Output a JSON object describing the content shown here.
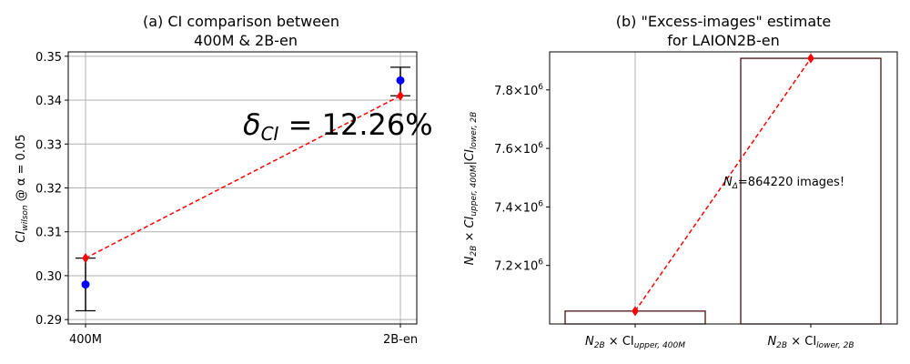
{
  "chart_data": [
    {
      "type": "scatter",
      "title_line1": "(a) CI comparison between",
      "title_line2": "400M & 2B-en",
      "categories": [
        "400M",
        "2B-en"
      ],
      "ylim": [
        0.289,
        0.351
      ],
      "yticks": [
        0.29,
        0.3,
        0.31,
        0.32,
        0.33,
        0.34,
        0.35
      ],
      "ytick_labels": [
        "0.29",
        "0.30",
        "0.31",
        "0.32",
        "0.33",
        "0.34",
        "0.35"
      ],
      "ylabel": {
        "base": "CI",
        "sub": "wilson",
        "rest": " @ α = 0.05"
      },
      "grid": true,
      "centers": {
        "color": "#0000ff",
        "values": [
          0.298,
          0.3445
        ]
      },
      "error_bars": {
        "color": "#000000",
        "lower": [
          0.292,
          0.341
        ],
        "upper": [
          0.304,
          0.3475
        ]
      },
      "bounds_line": {
        "color": "#ff0000",
        "style": "dashed",
        "values": [
          0.304,
          0.341
        ]
      },
      "annotation": {
        "base": "δ",
        "sub": "CI",
        "rest": " = 12.26%"
      }
    },
    {
      "type": "bar",
      "title_line1": "(b) \"Excess-images\" estimate",
      "title_line2": "for LAION2B-en",
      "categories": [
        {
          "base": "N",
          "sub1": "2B",
          "mid": " × CI",
          "sub2": "upper, 400M"
        },
        {
          "base": "N",
          "sub1": "2B",
          "mid": " × CI",
          "sub2": "lower, 2B"
        }
      ],
      "values": [
        7044000,
        7908000
      ],
      "ylim": [
        7000000,
        7930000
      ],
      "yticks": [
        7200000,
        7400000,
        7600000,
        7800000
      ],
      "ytick_labels": [
        {
          "mantissa": "7.2",
          "times": "×10",
          "exp": "6"
        },
        {
          "mantissa": "7.4",
          "times": "×10",
          "exp": "6"
        },
        {
          "mantissa": "7.6",
          "times": "×10",
          "exp": "6"
        },
        {
          "mantissa": "7.8",
          "times": "×10",
          "exp": "6"
        }
      ],
      "ylabel": "N_2B × CI_upper,400M | CI_lower,2B",
      "bar_fill": "#ffffff",
      "bar_edge": "#3a0000",
      "trend_line": {
        "color": "#ff0000",
        "style": "dashed"
      },
      "grid": "x",
      "annotation": {
        "base": "N",
        "sub": "Δ",
        "rest": "=864220 images!"
      }
    }
  ]
}
